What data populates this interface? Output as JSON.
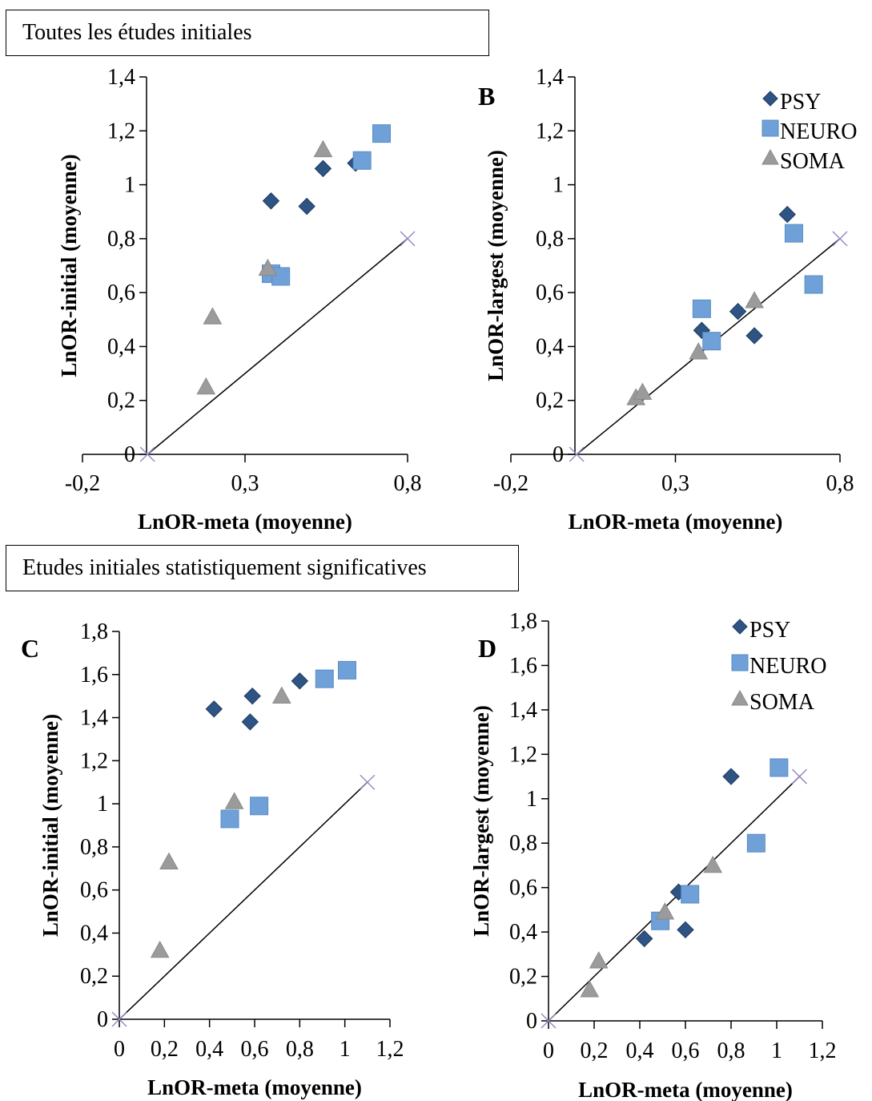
{
  "sections": [
    {
      "label": "Toutes les études initiales"
    },
    {
      "label": "Etudes initiales statistiquement significatives"
    }
  ],
  "colors": {
    "PSY": "#2e5484",
    "NEURO": "#6fa1d8",
    "SOMA": "#9b9b9b",
    "reference": "#9a8bc2"
  },
  "chart_data": [
    {
      "type": "scatter",
      "panel": "A",
      "letter": "",
      "xlabel": "LnOR-meta (moyenne)",
      "ylabel": "LnOR-initial (moyenne)",
      "xlim": [
        -0.2,
        0.8
      ],
      "ylim": [
        0,
        1.4
      ],
      "xticks": [
        "-0,2",
        "0,3",
        "0,8"
      ],
      "yticks": [
        "0",
        "0,2",
        "0,4",
        "0,6",
        "0,8",
        "1",
        "1,2",
        "1,4"
      ],
      "legend": null,
      "reference_line": [
        [
          0,
          0
        ],
        [
          0.8,
          0.8
        ]
      ],
      "series": [
        {
          "name": "PSY",
          "marker": "diamond",
          "points": [
            [
              0.38,
              0.94
            ],
            [
              0.49,
              0.92
            ],
            [
              0.54,
              1.06
            ],
            [
              0.64,
              1.08
            ]
          ]
        },
        {
          "name": "NEURO",
          "marker": "square",
          "points": [
            [
              0.38,
              0.67
            ],
            [
              0.41,
              0.66
            ],
            [
              0.66,
              1.09
            ],
            [
              0.72,
              1.19
            ]
          ]
        },
        {
          "name": "SOMA",
          "marker": "triangle",
          "points": [
            [
              0.18,
              0.25
            ],
            [
              0.2,
              0.51
            ],
            [
              0.37,
              0.69
            ],
            [
              0.54,
              1.13
            ]
          ]
        }
      ]
    },
    {
      "type": "scatter",
      "panel": "B",
      "letter": "B",
      "xlabel": "LnOR-meta (moyenne)",
      "ylabel": "LnOR-largest (moyenne)",
      "xlim": [
        -0.2,
        0.8
      ],
      "ylim": [
        0,
        1.4
      ],
      "xticks": [
        "-0,2",
        "0,3",
        "0,8"
      ],
      "yticks": [
        "0",
        "0,2",
        "0,4",
        "0,6",
        "0,8",
        "1",
        "1,2",
        "1,4"
      ],
      "legend": [
        "PSY",
        "NEURO",
        "SOMA"
      ],
      "reference_line": [
        [
          0,
          0
        ],
        [
          0.8,
          0.8
        ]
      ],
      "series": [
        {
          "name": "PSY",
          "marker": "diamond",
          "points": [
            [
              0.38,
              0.46
            ],
            [
              0.49,
              0.53
            ],
            [
              0.54,
              0.44
            ],
            [
              0.64,
              0.89
            ]
          ]
        },
        {
          "name": "NEURO",
          "marker": "square",
          "points": [
            [
              0.38,
              0.54
            ],
            [
              0.41,
              0.42
            ],
            [
              0.66,
              0.82
            ],
            [
              0.72,
              0.63
            ]
          ]
        },
        {
          "name": "SOMA",
          "marker": "triangle",
          "points": [
            [
              0.18,
              0.21
            ],
            [
              0.2,
              0.23
            ],
            [
              0.37,
              0.38
            ],
            [
              0.54,
              0.57
            ]
          ]
        }
      ]
    },
    {
      "type": "scatter",
      "panel": "C",
      "letter": "C",
      "xlabel": "LnOR-meta (moyenne)",
      "ylabel": "LnOR-initial (moyenne)",
      "xlim": [
        0,
        1.2
      ],
      "ylim": [
        0,
        1.8
      ],
      "xticks": [
        "0",
        "0,2",
        "0,4",
        "0,6",
        "0,8",
        "1",
        "1,2"
      ],
      "yticks": [
        "0",
        "0,2",
        "0,4",
        "0,6",
        "0,8",
        "1",
        "1,2",
        "1,4",
        "1,6",
        "1,8"
      ],
      "legend": null,
      "reference_line": [
        [
          0,
          0
        ],
        [
          1.1,
          1.1
        ]
      ],
      "series": [
        {
          "name": "PSY",
          "marker": "diamond",
          "points": [
            [
              0.42,
              1.44
            ],
            [
              0.58,
              1.38
            ],
            [
              0.59,
              1.5
            ],
            [
              0.8,
              1.57
            ]
          ]
        },
        {
          "name": "NEURO",
          "marker": "square",
          "points": [
            [
              0.49,
              0.93
            ],
            [
              0.62,
              0.99
            ],
            [
              0.91,
              1.58
            ],
            [
              1.01,
              1.62
            ]
          ]
        },
        {
          "name": "SOMA",
          "marker": "triangle",
          "points": [
            [
              0.18,
              0.32
            ],
            [
              0.22,
              0.73
            ],
            [
              0.51,
              1.01
            ],
            [
              0.72,
              1.5
            ]
          ]
        }
      ]
    },
    {
      "type": "scatter",
      "panel": "D",
      "letter": "D",
      "xlabel": "LnOR-meta (moyenne)",
      "ylabel": "LnOR-largest (moyenne)",
      "xlim": [
        0,
        1.2
      ],
      "ylim": [
        0,
        1.8
      ],
      "xticks": [
        "0",
        "0,2",
        "0,4",
        "0,6",
        "0,8",
        "1",
        "1,2"
      ],
      "yticks": [
        "0",
        "0,2",
        "0,4",
        "0,6",
        "0,8",
        "1",
        "1,2",
        "1,4",
        "1,6",
        "1,8"
      ],
      "legend": [
        "PSY",
        "NEURO",
        "SOMA"
      ],
      "reference_line": [
        [
          0,
          0
        ],
        [
          1.1,
          1.1
        ]
      ],
      "series": [
        {
          "name": "PSY",
          "marker": "diamond",
          "points": [
            [
              0.42,
              0.37
            ],
            [
              0.57,
              0.58
            ],
            [
              0.6,
              0.41
            ],
            [
              0.8,
              1.1
            ]
          ]
        },
        {
          "name": "NEURO",
          "marker": "square",
          "points": [
            [
              0.49,
              0.45
            ],
            [
              0.62,
              0.57
            ],
            [
              0.91,
              0.8
            ],
            [
              1.01,
              1.14
            ]
          ]
        },
        {
          "name": "SOMA",
          "marker": "triangle",
          "points": [
            [
              0.18,
              0.14
            ],
            [
              0.22,
              0.27
            ],
            [
              0.51,
              0.49
            ],
            [
              0.72,
              0.7
            ]
          ]
        }
      ]
    }
  ]
}
